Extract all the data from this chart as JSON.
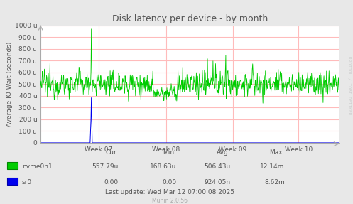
{
  "title": "Disk latency per device - by month",
  "ylabel": "Average IO Wait (seconds)",
  "bg_color": "#e8e8e8",
  "plot_bg_color": "#ffffff",
  "grid_color": "#ffbbbb",
  "border_color": "#aaaaaa",
  "ylim": [
    0,
    1000
  ],
  "ytick_labels": [
    "0",
    "100 u",
    "200 u",
    "300 u",
    "400 u",
    "500 u",
    "600 u",
    "700 u",
    "800 u",
    "900 u",
    "1000 u"
  ],
  "xtick_labels": [
    "Week 07",
    "Week 08",
    "Week 09",
    "Week 10"
  ],
  "nvme_color": "#00cc00",
  "sr0_color": "#0000ee",
  "stats_header": [
    "Cur:",
    "Min:",
    "Avg:",
    "Max:"
  ],
  "stats_nvme": [
    "557.79u",
    "168.63u",
    "506.43u",
    "12.14m"
  ],
  "stats_sr0": [
    "0.00",
    "0.00",
    "924.05n",
    "8.62m"
  ],
  "last_update": "Last update: Wed Mar 12 07:00:08 2025",
  "munin_version": "Munin 2.0.56",
  "rrdtool_text": "RRDTOOL / TOBI OETIKER",
  "text_color": "#555555",
  "light_text_color": "#aaaaaa"
}
